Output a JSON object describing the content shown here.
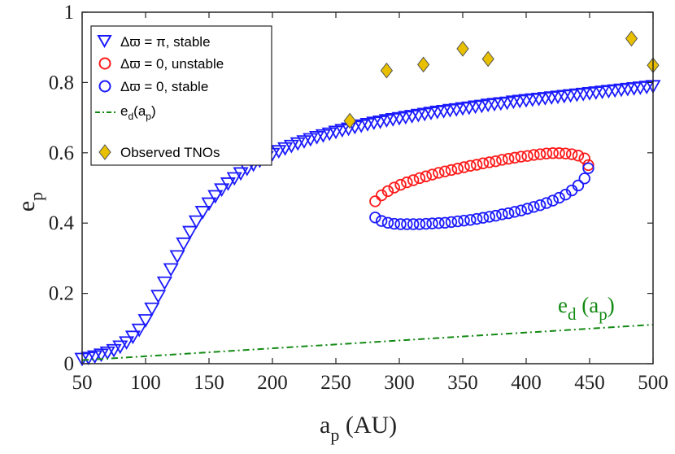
{
  "chart_data": {
    "type": "scatter",
    "title": "",
    "xlabel": {
      "main": "a",
      "sub": "p",
      "unit": " (AU)"
    },
    "ylabel": {
      "main": "e",
      "sub": "p"
    },
    "xlim": [
      50,
      500
    ],
    "ylim": [
      0,
      1
    ],
    "xticks": [
      50,
      100,
      150,
      200,
      250,
      300,
      350,
      400,
      450,
      500
    ],
    "yticks": [
      0,
      0.2,
      0.4,
      0.6,
      0.8,
      1
    ],
    "ytick_labels": [
      "0",
      "0.2",
      "0.4",
      "0.6",
      "0.8",
      "1"
    ],
    "grid": false,
    "legend_position": "top-left",
    "series": [
      {
        "name": "Δϖ = π, stable",
        "legend_label": "Δϖ = π, stable",
        "marker": "triangle-down",
        "color": "#1a1aff",
        "x": [
          50,
          55,
          60,
          65,
          70,
          75,
          80,
          85,
          90,
          95,
          100,
          105,
          110,
          115,
          120,
          125,
          130,
          135,
          140,
          145,
          150,
          155,
          160,
          165,
          170,
          175,
          180,
          185,
          190,
          195,
          200,
          205,
          210,
          215,
          220,
          225,
          230,
          235,
          240,
          245,
          250,
          255,
          260,
          265,
          270,
          275,
          280,
          285,
          290,
          295,
          300,
          305,
          310,
          315,
          320,
          325,
          330,
          335,
          340,
          345,
          350,
          355,
          360,
          365,
          370,
          375,
          380,
          385,
          390,
          395,
          400,
          405,
          410,
          415,
          420,
          425,
          430,
          435,
          440,
          445,
          450,
          455,
          460,
          465,
          470,
          475,
          480,
          485,
          490,
          495,
          500
        ],
        "y": [
          0.015,
          0.018,
          0.022,
          0.027,
          0.033,
          0.04,
          0.05,
          0.062,
          0.078,
          0.098,
          0.125,
          0.158,
          0.194,
          0.232,
          0.27,
          0.307,
          0.343,
          0.376,
          0.406,
          0.433,
          0.457,
          0.478,
          0.497,
          0.514,
          0.529,
          0.543,
          0.556,
          0.568,
          0.579,
          0.589,
          0.598,
          0.606,
          0.614,
          0.621,
          0.628,
          0.634,
          0.64,
          0.646,
          0.651,
          0.656,
          0.661,
          0.666,
          0.67,
          0.675,
          0.679,
          0.683,
          0.687,
          0.69,
          0.694,
          0.697,
          0.7,
          0.703,
          0.706,
          0.709,
          0.712,
          0.715,
          0.718,
          0.72,
          0.723,
          0.725,
          0.728,
          0.73,
          0.733,
          0.735,
          0.738,
          0.74,
          0.742,
          0.744,
          0.747,
          0.749,
          0.751,
          0.753,
          0.755,
          0.757,
          0.759,
          0.761,
          0.763,
          0.765,
          0.767,
          0.769,
          0.771,
          0.773,
          0.775,
          0.777,
          0.779,
          0.781,
          0.783,
          0.785,
          0.787,
          0.789,
          0.791
        ]
      },
      {
        "name": "Δϖ = 0, unstable",
        "legend_label": "Δϖ = 0, unstable",
        "marker": "circle",
        "color": "#ff1a1a",
        "x": [
          281,
          286,
          291,
          296,
          301,
          306,
          311,
          316,
          321,
          326,
          331,
          336,
          341,
          346,
          351,
          356,
          361,
          366,
          371,
          376,
          381,
          386,
          391,
          396,
          401,
          406,
          411,
          416,
          421,
          426,
          431,
          436,
          441,
          446,
          449
        ],
        "y": [
          0.462,
          0.479,
          0.491,
          0.501,
          0.509,
          0.516,
          0.522,
          0.528,
          0.533,
          0.538,
          0.543,
          0.547,
          0.551,
          0.555,
          0.559,
          0.563,
          0.566,
          0.57,
          0.573,
          0.576,
          0.58,
          0.583,
          0.586,
          0.589,
          0.591,
          0.594,
          0.596,
          0.598,
          0.599,
          0.599,
          0.598,
          0.596,
          0.592,
          0.584,
          0.565
        ]
      },
      {
        "name": "Δϖ = 0, stable",
        "legend_label": "Δϖ = 0, stable",
        "marker": "circle",
        "color": "#1a1aff",
        "x": [
          281,
          286,
          291,
          296,
          301,
          306,
          311,
          316,
          321,
          326,
          331,
          336,
          341,
          346,
          351,
          356,
          361,
          366,
          371,
          376,
          381,
          386,
          391,
          396,
          401,
          406,
          411,
          416,
          421,
          426,
          431,
          436,
          441,
          446,
          449
        ],
        "y": [
          0.416,
          0.406,
          0.401,
          0.398,
          0.397,
          0.397,
          0.397,
          0.397,
          0.398,
          0.399,
          0.4,
          0.401,
          0.403,
          0.405,
          0.407,
          0.409,
          0.412,
          0.415,
          0.418,
          0.421,
          0.425,
          0.428,
          0.432,
          0.436,
          0.441,
          0.446,
          0.451,
          0.457,
          0.464,
          0.472,
          0.481,
          0.493,
          0.507,
          0.527,
          0.556
        ]
      },
      {
        "name": "e_d(a_p)",
        "legend_label": "e",
        "legend_sub1": "d",
        "legend_mid": "(a",
        "legend_sub2": "p",
        "legend_end": ")",
        "marker": "dashdot-line",
        "color": "#138a13",
        "x": [
          50,
          500
        ],
        "y": [
          0.01,
          0.111
        ]
      },
      {
        "name": "Observed TNOs",
        "legend_label": "Observed TNOs",
        "marker": "diamond",
        "color": "#e8c000",
        "x": [
          261,
          290,
          319,
          350,
          370,
          483,
          500
        ],
        "y": [
          0.691,
          0.834,
          0.851,
          0.896,
          0.867,
          0.925,
          0.849
        ]
      }
    ],
    "annotations": [
      {
        "main": "e",
        "sub1": "d",
        "mid": " (a",
        "sub2": "p",
        "end": ")",
        "x": 430,
        "y": 0.12
      }
    ]
  }
}
